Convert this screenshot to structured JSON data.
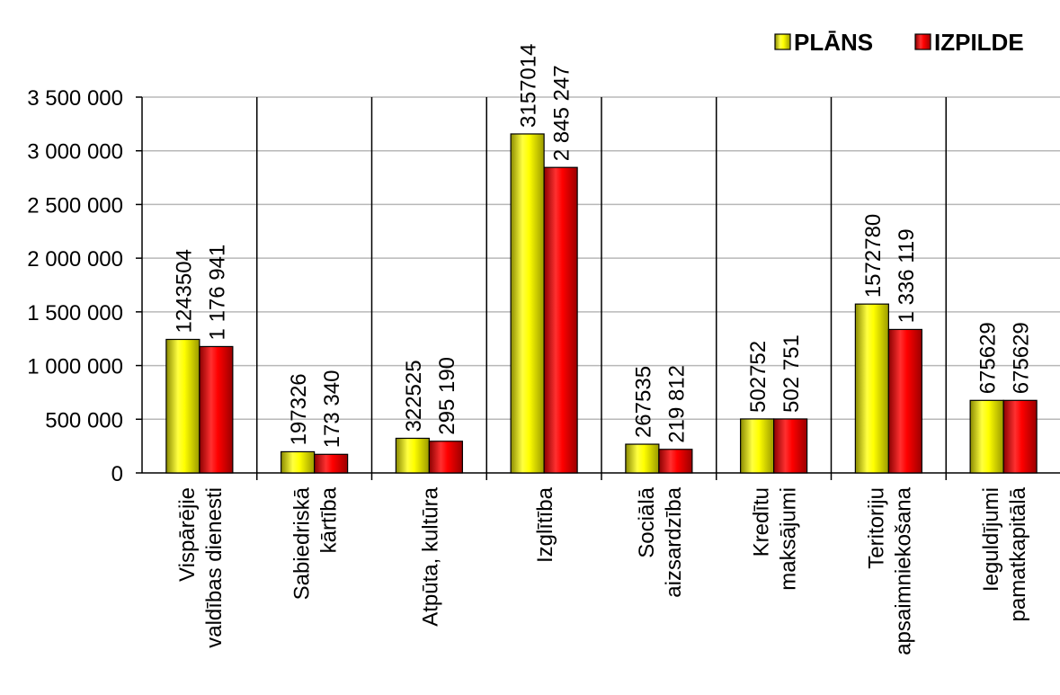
{
  "chart_data": {
    "type": "bar",
    "categories": [
      [
        "Vispārējie",
        "valdības dienesti"
      ],
      [
        "Sabiedriskā",
        "kārtība"
      ],
      [
        "Atpūta, kultūra"
      ],
      [
        "Izglītība"
      ],
      [
        "Sociālā",
        "aizsardzība"
      ],
      [
        "Kredītu",
        "maksājumi"
      ],
      [
        "Teritoriju",
        "apsaimniekošana"
      ],
      [
        "Ieguldījumi",
        "pamatkapitālā"
      ]
    ],
    "series": [
      {
        "name": "PLĀNS",
        "color": "#e8e800",
        "values": [
          1243504,
          197326,
          322525,
          3157014,
          267535,
          502752,
          1572780,
          675629
        ],
        "labels": [
          "1243504",
          "197326",
          "322525",
          "3157014",
          "267535",
          "502752",
          "1572780",
          "675629"
        ]
      },
      {
        "name": "IZPILDE",
        "color": "#e80000",
        "values": [
          1176941,
          173340,
          295190,
          2845247,
          219812,
          502751,
          1336119,
          675629
        ],
        "labels": [
          "1 176 941",
          "173 340",
          "295 190",
          "2 845 247",
          "219 812",
          "502 751",
          "1 336 119",
          "675629"
        ]
      }
    ],
    "ylim": [
      0,
      3500000
    ],
    "yticks": [
      0,
      500000,
      1000000,
      1500000,
      2000000,
      2500000,
      3000000,
      3500000
    ],
    "ytick_labels": [
      "0",
      "500 000",
      "1 000 000",
      "1 500 000",
      "2 000 000",
      "2 500 000",
      "3 000 000",
      "3 500 000"
    ],
    "grid": true,
    "legend": "top-right"
  }
}
